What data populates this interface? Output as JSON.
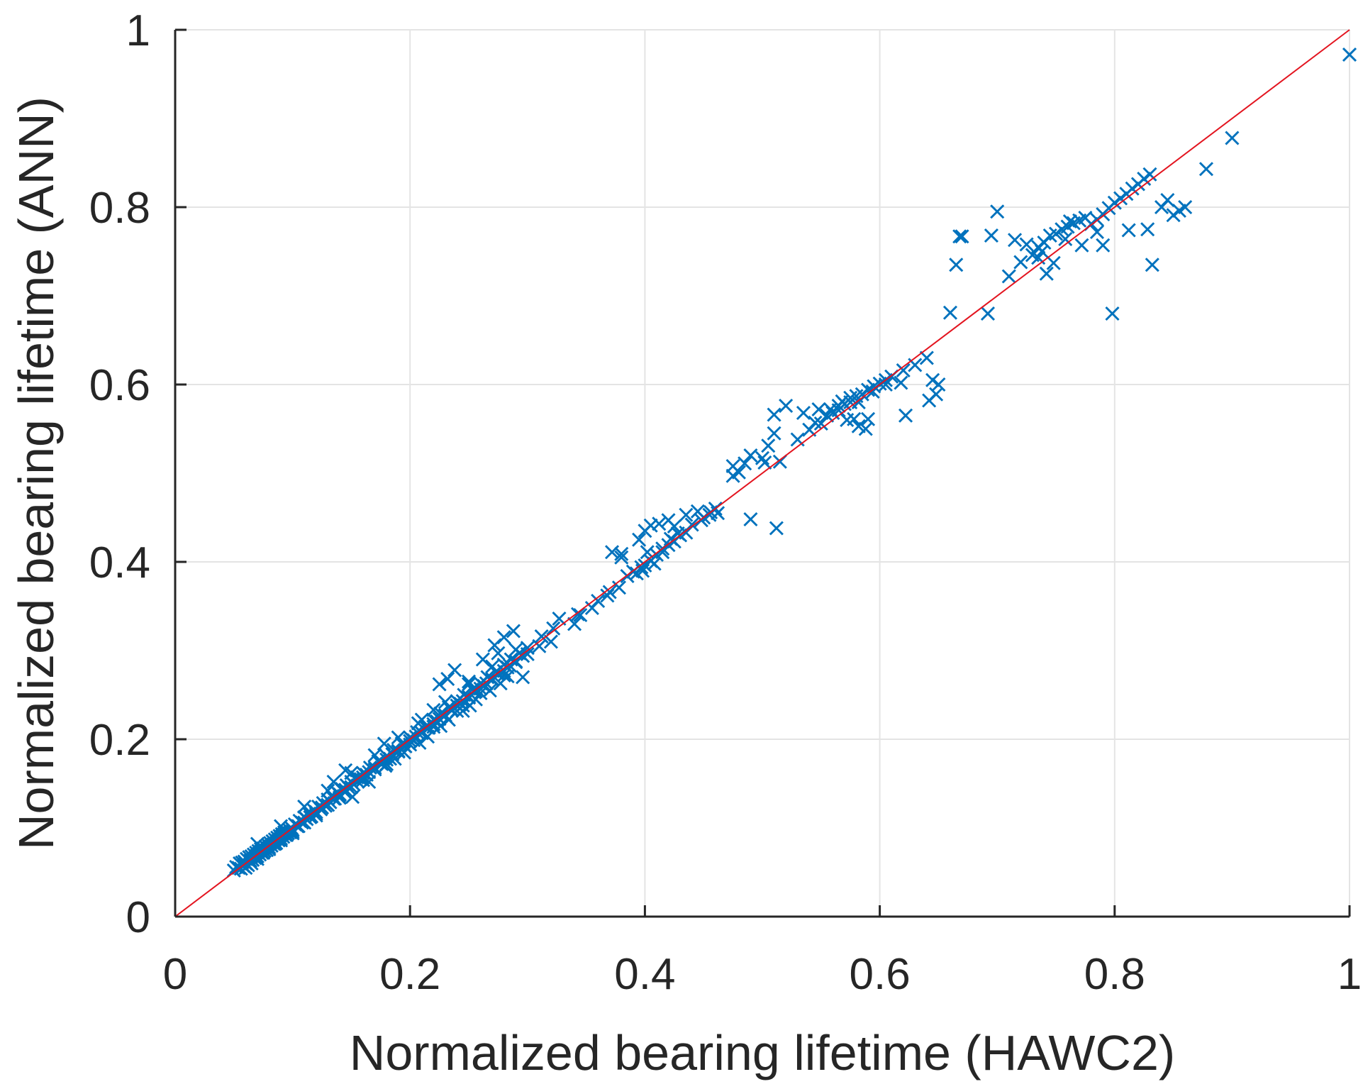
{
  "chart_data": {
    "type": "scatter",
    "title": "",
    "xlabel": "Normalized bearing lifetime (HAWC2)",
    "ylabel": "Normalized bearing lifetime (ANN)",
    "xlim": [
      0,
      1
    ],
    "ylim": [
      0,
      1
    ],
    "xticks": [
      0,
      0.2,
      0.4,
      0.6,
      0.8,
      1
    ],
    "yticks": [
      0,
      0.2,
      0.4,
      0.6,
      0.8,
      1
    ],
    "xtick_labels": [
      "0",
      "0.2",
      "0.4",
      "0.6",
      "0.8",
      "1"
    ],
    "ytick_labels": [
      "0",
      "0.2",
      "0.4",
      "0.6",
      "0.8",
      "1"
    ],
    "grid": true,
    "colors": {
      "points": "#0072bd",
      "reference_line": "#e3141f",
      "grid": "#e4e4e4",
      "axes": "#262626"
    },
    "series": [
      {
        "name": "ANN vs HAWC2",
        "marker": "x",
        "x": [
          0.05,
          0.052,
          0.054,
          0.055,
          0.056,
          0.057,
          0.058,
          0.059,
          0.06,
          0.061,
          0.062,
          0.063,
          0.064,
          0.065,
          0.066,
          0.067,
          0.068,
          0.069,
          0.07,
          0.071,
          0.072,
          0.073,
          0.074,
          0.075,
          0.076,
          0.077,
          0.078,
          0.079,
          0.08,
          0.081,
          0.082,
          0.083,
          0.084,
          0.085,
          0.086,
          0.087,
          0.088,
          0.089,
          0.09,
          0.091,
          0.092,
          0.093,
          0.094,
          0.095,
          0.096,
          0.097,
          0.098,
          0.099,
          0.1,
          0.102,
          0.104,
          0.106,
          0.108,
          0.11,
          0.112,
          0.114,
          0.116,
          0.118,
          0.12,
          0.122,
          0.124,
          0.126,
          0.128,
          0.13,
          0.132,
          0.134,
          0.136,
          0.138,
          0.14,
          0.142,
          0.144,
          0.146,
          0.148,
          0.15,
          0.152,
          0.155,
          0.158,
          0.16,
          0.163,
          0.166,
          0.17,
          0.173,
          0.176,
          0.18,
          0.183,
          0.186,
          0.19,
          0.193,
          0.196,
          0.2,
          0.203,
          0.206,
          0.21,
          0.213,
          0.216,
          0.22,
          0.223,
          0.226,
          0.23,
          0.233,
          0.236,
          0.24,
          0.243,
          0.246,
          0.25,
          0.253,
          0.256,
          0.26,
          0.263,
          0.266,
          0.27,
          0.273,
          0.276,
          0.28,
          0.283,
          0.286,
          0.29,
          0.293,
          0.296,
          0.3,
          0.06,
          0.065,
          0.07,
          0.075,
          0.08,
          0.085,
          0.09,
          0.095,
          0.1,
          0.105,
          0.11,
          0.115,
          0.12,
          0.125,
          0.13,
          0.135,
          0.14,
          0.145,
          0.15,
          0.155,
          0.16,
          0.165,
          0.17,
          0.175,
          0.18,
          0.185,
          0.19,
          0.195,
          0.2,
          0.205,
          0.21,
          0.215,
          0.22,
          0.225,
          0.23,
          0.235,
          0.24,
          0.245,
          0.25,
          0.255,
          0.26,
          0.265,
          0.27,
          0.275,
          0.28,
          0.285,
          0.29,
          0.07,
          0.09,
          0.11,
          0.13,
          0.15,
          0.17,
          0.19,
          0.21,
          0.23,
          0.25,
          0.27,
          0.29,
          0.1,
          0.12,
          0.14,
          0.16,
          0.18,
          0.2,
          0.22,
          0.24,
          0.26,
          0.28,
          0.151,
          0.165,
          0.179,
          0.187,
          0.195,
          0.208,
          0.215,
          0.207,
          0.226,
          0.233,
          0.245,
          0.251,
          0.256,
          0.268,
          0.277,
          0.283,
          0.135,
          0.145,
          0.178,
          0.22,
          0.25,
          0.275,
          0.28,
          0.288,
          0.272,
          0.262,
          0.225,
          0.238,
          0.232,
          0.245,
          0.25,
          0.296,
          0.3,
          0.31,
          0.312,
          0.32,
          0.322,
          0.327,
          0.34,
          0.343,
          0.345,
          0.355,
          0.36,
          0.37,
          0.368,
          0.378,
          0.385,
          0.39,
          0.393,
          0.397,
          0.4,
          0.405,
          0.41,
          0.415,
          0.42,
          0.425,
          0.43,
          0.435,
          0.44,
          0.45,
          0.455,
          0.46,
          0.372,
          0.38,
          0.395,
          0.4,
          0.405,
          0.412,
          0.42,
          0.425,
          0.435,
          0.445,
          0.408,
          0.398,
          0.422,
          0.428,
          0.38,
          0.402,
          0.415,
          0.475,
          0.48,
          0.485,
          0.49,
          0.5,
          0.505,
          0.51,
          0.53,
          0.54,
          0.545,
          0.55,
          0.555,
          0.56,
          0.565,
          0.57,
          0.575,
          0.58,
          0.585,
          0.59,
          0.595,
          0.6,
          0.605,
          0.61,
          0.62,
          0.63,
          0.64,
          0.645,
          0.65,
          0.448,
          0.456,
          0.462,
          0.49,
          0.512,
          0.475,
          0.502,
          0.515,
          0.588,
          0.572,
          0.558,
          0.565,
          0.578,
          0.582,
          0.59,
          0.605,
          0.618,
          0.622,
          0.642,
          0.648,
          0.51,
          0.52,
          0.535,
          0.548,
          0.568,
          0.575,
          0.582,
          0.594,
          0.66,
          0.665,
          0.668,
          0.67,
          0.692,
          0.695,
          0.7,
          0.71,
          0.715,
          0.72,
          0.725,
          0.73,
          0.735,
          0.74,
          0.745,
          0.75,
          0.755,
          0.76,
          0.765,
          0.77,
          0.775,
          0.78,
          0.785,
          0.79,
          0.795,
          0.8,
          0.805,
          0.81,
          0.815,
          0.82,
          0.825,
          0.83,
          0.84,
          0.845,
          0.85,
          0.855,
          0.86,
          0.878,
          0.9,
          1.0,
          0.798,
          0.742,
          0.762,
          0.738,
          0.785,
          0.79,
          0.812,
          0.828,
          0.832,
          0.772,
          0.758,
          0.748,
          0.735
        ],
        "y": [
          0.052,
          0.056,
          0.055,
          0.06,
          0.054,
          0.061,
          0.057,
          0.062,
          0.06,
          0.065,
          0.058,
          0.067,
          0.063,
          0.068,
          0.064,
          0.07,
          0.066,
          0.072,
          0.068,
          0.074,
          0.07,
          0.076,
          0.072,
          0.077,
          0.074,
          0.079,
          0.075,
          0.081,
          0.078,
          0.083,
          0.08,
          0.085,
          0.082,
          0.087,
          0.083,
          0.089,
          0.086,
          0.091,
          0.088,
          0.093,
          0.09,
          0.095,
          0.092,
          0.096,
          0.094,
          0.098,
          0.095,
          0.1,
          0.098,
          0.104,
          0.102,
          0.108,
          0.106,
          0.112,
          0.11,
          0.116,
          0.113,
          0.12,
          0.118,
          0.124,
          0.121,
          0.128,
          0.125,
          0.132,
          0.129,
          0.136,
          0.133,
          0.14,
          0.138,
          0.144,
          0.141,
          0.148,
          0.145,
          0.152,
          0.149,
          0.157,
          0.155,
          0.162,
          0.16,
          0.168,
          0.168,
          0.175,
          0.172,
          0.181,
          0.178,
          0.188,
          0.186,
          0.195,
          0.192,
          0.202,
          0.199,
          0.208,
          0.207,
          0.214,
          0.213,
          0.222,
          0.22,
          0.229,
          0.227,
          0.236,
          0.233,
          0.243,
          0.24,
          0.25,
          0.247,
          0.256,
          0.254,
          0.263,
          0.26,
          0.27,
          0.268,
          0.276,
          0.274,
          0.284,
          0.281,
          0.29,
          0.288,
          0.297,
          0.294,
          0.303,
          0.055,
          0.06,
          0.065,
          0.072,
          0.076,
          0.082,
          0.086,
          0.092,
          0.096,
          0.102,
          0.106,
          0.112,
          0.116,
          0.123,
          0.126,
          0.133,
          0.137,
          0.143,
          0.146,
          0.153,
          0.157,
          0.163,
          0.166,
          0.173,
          0.177,
          0.183,
          0.187,
          0.193,
          0.198,
          0.203,
          0.207,
          0.213,
          0.217,
          0.223,
          0.227,
          0.233,
          0.238,
          0.243,
          0.247,
          0.253,
          0.257,
          0.263,
          0.267,
          0.273,
          0.277,
          0.283,
          0.287,
          0.082,
          0.102,
          0.124,
          0.142,
          0.162,
          0.182,
          0.202,
          0.222,
          0.242,
          0.262,
          0.282,
          0.301,
          0.094,
          0.114,
          0.134,
          0.154,
          0.172,
          0.194,
          0.214,
          0.232,
          0.252,
          0.272,
          0.135,
          0.152,
          0.17,
          0.178,
          0.185,
          0.196,
          0.203,
          0.218,
          0.215,
          0.222,
          0.232,
          0.238,
          0.245,
          0.255,
          0.263,
          0.271,
          0.152,
          0.165,
          0.195,
          0.233,
          0.265,
          0.297,
          0.315,
          0.322,
          0.306,
          0.29,
          0.262,
          0.278,
          0.268,
          0.238,
          0.248,
          0.27,
          0.296,
          0.305,
          0.316,
          0.31,
          0.325,
          0.336,
          0.33,
          0.341,
          0.34,
          0.348,
          0.356,
          0.366,
          0.362,
          0.371,
          0.384,
          0.389,
          0.387,
          0.394,
          0.396,
          0.401,
          0.408,
          0.411,
          0.419,
          0.423,
          0.43,
          0.433,
          0.442,
          0.45,
          0.453,
          0.46,
          0.411,
          0.405,
          0.425,
          0.435,
          0.441,
          0.443,
          0.447,
          0.44,
          0.453,
          0.457,
          0.398,
          0.39,
          0.426,
          0.432,
          0.409,
          0.411,
          0.415,
          0.497,
          0.501,
          0.511,
          0.52,
          0.517,
          0.531,
          0.545,
          0.538,
          0.549,
          0.557,
          0.556,
          0.565,
          0.568,
          0.571,
          0.578,
          0.58,
          0.587,
          0.589,
          0.594,
          0.598,
          0.601,
          0.605,
          0.609,
          0.616,
          0.622,
          0.63,
          0.605,
          0.6,
          0.447,
          0.456,
          0.455,
          0.448,
          0.438,
          0.508,
          0.512,
          0.513,
          0.55,
          0.56,
          0.572,
          0.576,
          0.561,
          0.553,
          0.561,
          0.6,
          0.602,
          0.565,
          0.582,
          0.589,
          0.566,
          0.576,
          0.568,
          0.572,
          0.581,
          0.585,
          0.58,
          0.592,
          0.681,
          0.735,
          0.767,
          0.767,
          0.68,
          0.768,
          0.795,
          0.722,
          0.763,
          0.738,
          0.758,
          0.746,
          0.755,
          0.76,
          0.768,
          0.77,
          0.775,
          0.778,
          0.782,
          0.785,
          0.788,
          0.781,
          0.786,
          0.792,
          0.799,
          0.805,
          0.81,
          0.815,
          0.821,
          0.826,
          0.832,
          0.837,
          0.8,
          0.808,
          0.791,
          0.796,
          0.8,
          0.843,
          0.878,
          0.972,
          0.68,
          0.725,
          0.784,
          0.75,
          0.772,
          0.757,
          0.774,
          0.775,
          0.735,
          0.757,
          0.764,
          0.737,
          0.743
        ]
      },
      {
        "name": "1:1 reference",
        "type": "line",
        "x": [
          0,
          1
        ],
        "y": [
          0,
          1
        ]
      }
    ]
  }
}
